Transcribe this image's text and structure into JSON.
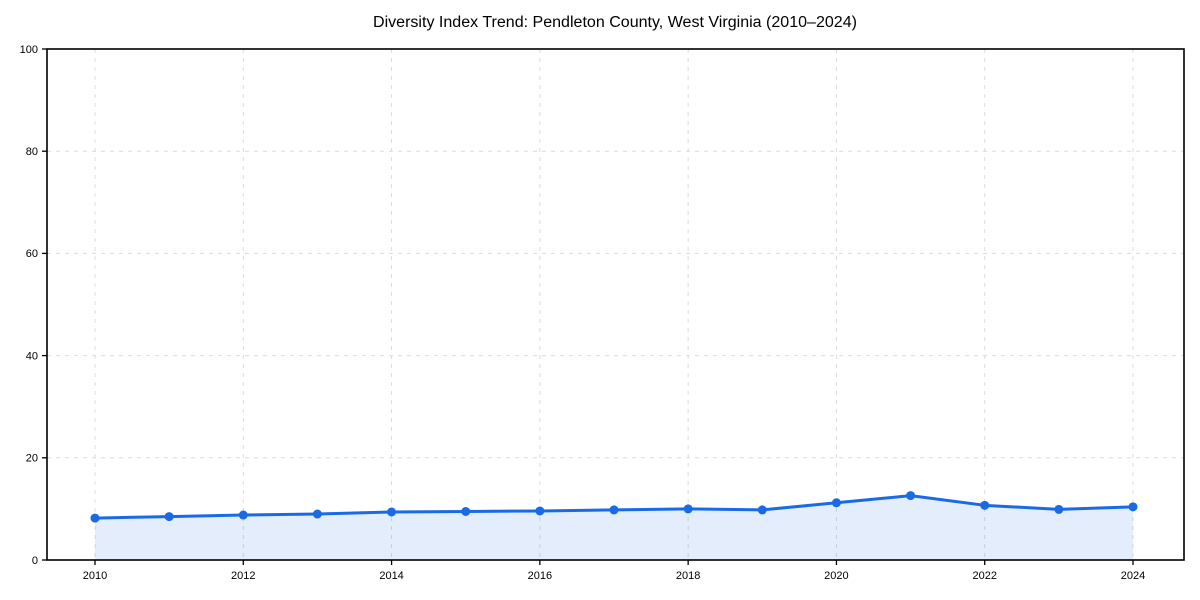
{
  "chart": {
    "title": "Diversity Index Trend: Pendleton County, West Virginia (2010–2024)"
  },
  "chart_data": {
    "type": "line",
    "title": "Diversity Index Trend: Pendleton County, West Virginia (2010–2024)",
    "x": [
      2010,
      2011,
      2012,
      2013,
      2014,
      2015,
      2016,
      2017,
      2018,
      2019,
      2020,
      2021,
      2022,
      2023,
      2024
    ],
    "series": [
      {
        "name": "Diversity Index",
        "values": [
          8.2,
          8.5,
          8.8,
          9.0,
          9.4,
          9.5,
          9.6,
          9.8,
          10.0,
          9.8,
          11.2,
          12.6,
          10.7,
          9.9,
          10.4
        ]
      }
    ],
    "xlabel": "",
    "ylabel": "",
    "ylim": [
      0,
      100
    ],
    "yticks": [
      0,
      20,
      40,
      60,
      80,
      100
    ],
    "xticks": [
      2010,
      2012,
      2014,
      2016,
      2018,
      2020,
      2022,
      2024
    ],
    "grid": true,
    "grid_style": "dashed",
    "legend_position": "none",
    "area_fill": true,
    "marker": "circle",
    "colors": {
      "line": "#1a6ae6",
      "marker": "#1a6ae6",
      "fill": "rgba(26,106,230,0.12)",
      "grid": "#dcdcdc",
      "axis": "#000000",
      "text": "#000000",
      "background": "#ffffff"
    }
  }
}
